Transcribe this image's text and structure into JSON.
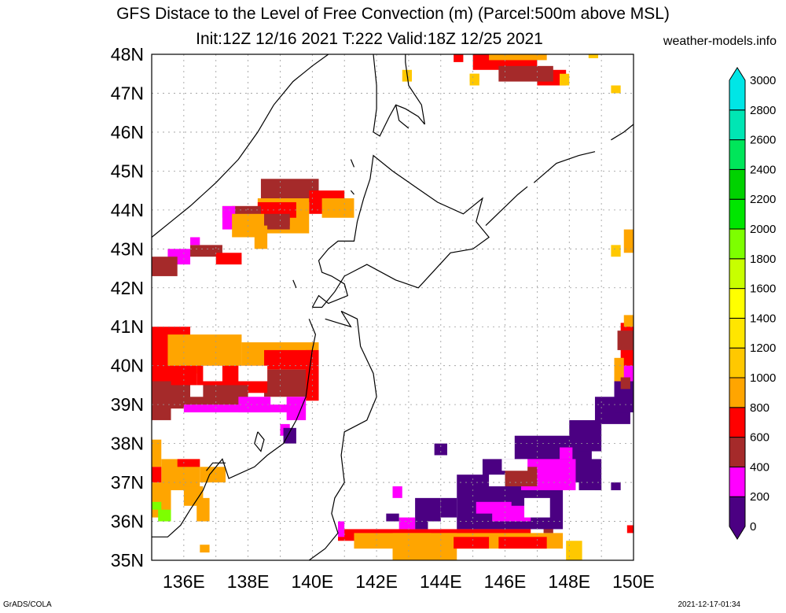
{
  "title_line1": "GFS Distace to the Level of Free Convection (m) (Parcel:500m above MSL)",
  "title_line2": "Init:12Z 12/16 2021 T:222 Valid:18Z 12/25 2021",
  "site": "weather-models.info",
  "footer_left": "GrADS/COLA",
  "footer_right": "2021-12-17-01:34",
  "map": {
    "lon_range": [
      135,
      150
    ],
    "lat_range": [
      35,
      48
    ],
    "lat_labels": [
      "35N",
      "36N",
      "37N",
      "38N",
      "39N",
      "40N",
      "41N",
      "42N",
      "43N",
      "44N",
      "45N",
      "46N",
      "47N",
      "48N"
    ],
    "lon_labels": [
      "136E",
      "138E",
      "140E",
      "142E",
      "144E",
      "146E",
      "148E",
      "150E"
    ]
  },
  "colorbar": {
    "levels": [
      "0",
      "200",
      "400",
      "600",
      "800",
      "1000",
      "1200",
      "1400",
      "1600",
      "1800",
      "2000",
      "2200",
      "2400",
      "2600",
      "2800",
      "3000"
    ],
    "colors": [
      "#4b0082",
      "#ff00ff",
      "#a52a2a",
      "#ff0000",
      "#ffa500",
      "#ffc800",
      "#ffe600",
      "#ffff00",
      "#c8ff00",
      "#7dff00",
      "#00e600",
      "#00d200",
      "#00e65a",
      "#00e6b4",
      "#00e6e6"
    ]
  }
}
